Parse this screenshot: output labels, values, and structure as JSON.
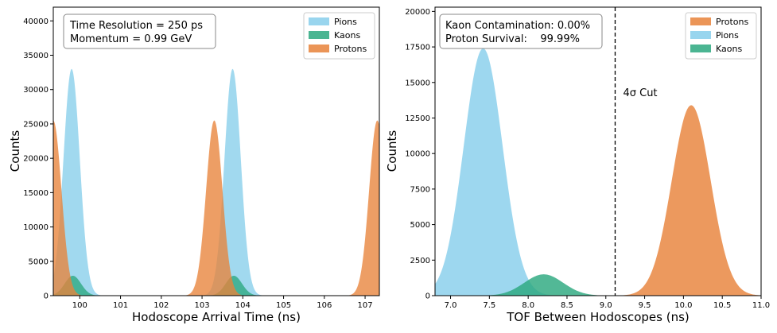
{
  "chart_data": [
    {
      "type": "area",
      "panel": "left",
      "xlabel": "Hodoscope Arrival Time (ns)",
      "ylabel": "Counts",
      "xlim": [
        99.35,
        107.35
      ],
      "ylim": [
        0,
        42000
      ],
      "x_ticks": [
        100,
        101,
        102,
        103,
        104,
        105,
        106,
        107
      ],
      "y_ticks": [
        0,
        5000,
        10000,
        15000,
        20000,
        25000,
        30000,
        35000,
        40000
      ],
      "legend_position": "top-right",
      "annotation_lines": [
        "Time Resolution = 250 ps",
        "Momentum = 0.99 GeV"
      ],
      "series": [
        {
          "name": "Pions",
          "color": "#87CEEB",
          "peaks": [
            {
              "center": 99.8,
              "height": 33000,
              "sigma": 0.2
            },
            {
              "center": 103.75,
              "height": 33000,
              "sigma": 0.2
            }
          ]
        },
        {
          "name": "Kaons",
          "color": "#2CA87F",
          "peaks": [
            {
              "center": 99.83,
              "height": 2900,
              "sigma": 0.2
            },
            {
              "center": 103.78,
              "height": 2900,
              "sigma": 0.2
            }
          ]
        },
        {
          "name": "Protons",
          "color": "#E8833A",
          "peaks": [
            {
              "center": 99.35,
              "height": 25500,
              "sigma": 0.2
            },
            {
              "center": 103.3,
              "height": 25500,
              "sigma": 0.2
            },
            {
              "center": 107.3,
              "height": 25500,
              "sigma": 0.2
            }
          ]
        }
      ]
    },
    {
      "type": "area",
      "panel": "right",
      "xlabel": "TOF Between Hodoscopes (ns)",
      "ylabel": "Counts",
      "xlim": [
        6.8,
        11.0
      ],
      "ylim": [
        0,
        20300
      ],
      "x_ticks": [
        7.0,
        7.5,
        8.0,
        8.5,
        9.0,
        9.5,
        10.0,
        10.5,
        11.0
      ],
      "x_tick_labels": [
        "7.0",
        "7.5",
        "8.0",
        "8.5",
        "9.0",
        "9.5",
        "10.0",
        "10.5",
        "11.0"
      ],
      "y_ticks": [
        0,
        2500,
        5000,
        7500,
        10000,
        12500,
        15000,
        17500,
        20000
      ],
      "legend_position": "top-right",
      "annotation_lines": [
        "Kaon Contamination: 0.00%",
        "Proton Survival:    99.99%"
      ],
      "cut_x": 9.12,
      "cut_label": "4σ Cut",
      "series": [
        {
          "name": "Protons",
          "color": "#E8833A",
          "peaks": [
            {
              "center": 10.1,
              "height": 13400,
              "sigma": 0.25
            }
          ]
        },
        {
          "name": "Pions",
          "color": "#87CEEB",
          "peaks": [
            {
              "center": 7.42,
              "height": 17400,
              "sigma": 0.25
            }
          ]
        },
        {
          "name": "Kaons",
          "color": "#2CA87F",
          "peaks": [
            {
              "center": 8.2,
              "height": 1500,
              "sigma": 0.25
            }
          ]
        }
      ]
    }
  ]
}
